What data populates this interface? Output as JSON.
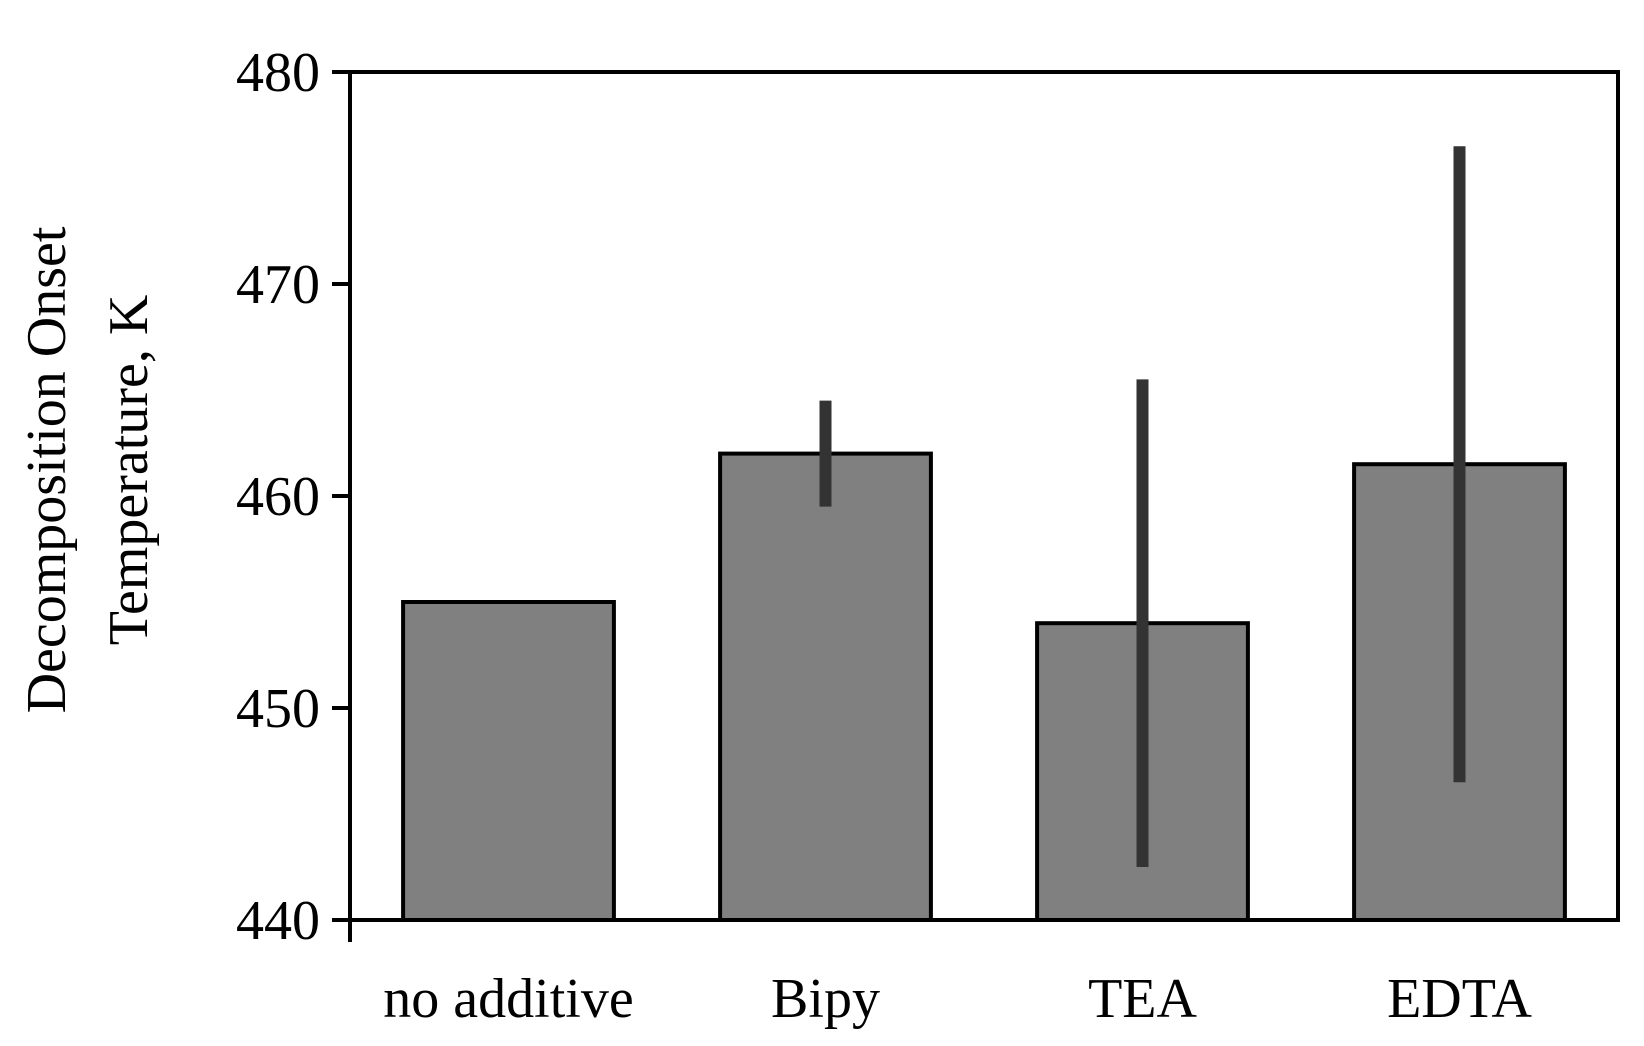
{
  "chart_data": {
    "type": "bar",
    "categories": [
      "no additive",
      "Bipy",
      "TEA",
      "EDTA"
    ],
    "values": [
      455,
      462,
      454,
      461.5
    ],
    "error_low": [
      null,
      459.5,
      442.5,
      446.5
    ],
    "error_high": [
      null,
      464.5,
      465.5,
      476.5
    ],
    "ylabel_line1": "Decomposition Onset",
    "ylabel_line2": "Temperature, K",
    "ylim": [
      440,
      480
    ],
    "yticks": [
      440,
      450,
      460,
      470,
      480
    ],
    "ytick_labels": [
      "440",
      "450",
      "460",
      "470",
      "480"
    ],
    "grid": false,
    "legend": "none",
    "colors": {
      "bar_fill": "#808080",
      "bar_stroke": "#000000",
      "error_bar": "#333333"
    }
  }
}
